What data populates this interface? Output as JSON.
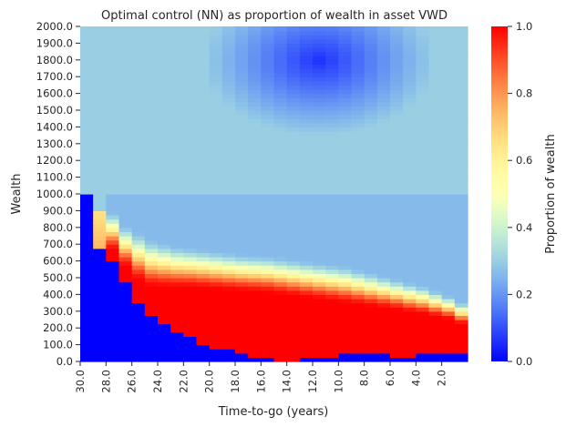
{
  "chart_data": {
    "type": "heatmap",
    "title": "Optimal control (NN) as proportion of wealth in asset VWD",
    "xlabel": "Time-to-go (years)",
    "ylabel": "Wealth",
    "colorbar_label": "Proportion of wealth",
    "x_tick_labels": [
      "30.0",
      "28.0",
      "26.0",
      "24.0",
      "22.0",
      "20.0",
      "18.0",
      "16.0",
      "14.0",
      "12.0",
      "10.0",
      "8.0",
      "6.0",
      "4.0",
      "2.0"
    ],
    "y_tick_labels": [
      "0.0",
      "100.0",
      "200.0",
      "300.0",
      "400.0",
      "500.0",
      "600.0",
      "700.0",
      "800.0",
      "900.0",
      "1000.0",
      "1100.0",
      "1200.0",
      "1300.0",
      "1400.0",
      "1500.0",
      "1600.0",
      "1700.0",
      "1800.0",
      "1900.0",
      "2000.0"
    ],
    "colorbar_tick_labels": [
      "0.0",
      "0.2",
      "0.4",
      "0.6",
      "0.8",
      "1.0"
    ],
    "x_range": [
      30,
      0
    ],
    "y_range": [
      0,
      2000
    ],
    "value_range": [
      0,
      1
    ],
    "colormap": "rainbow",
    "x": [
      30,
      29,
      28,
      27,
      26,
      25,
      24,
      23,
      22,
      21,
      20,
      19,
      18,
      17,
      16,
      15,
      14,
      13,
      12,
      11,
      10,
      9,
      8,
      7,
      6,
      5,
      4,
      3,
      2,
      1
    ],
    "regions": {
      "zero_boundary_wealth": [
        1000,
        670,
        600,
        470,
        360,
        285,
        225,
        175,
        140,
        110,
        85,
        65,
        45,
        25,
        15,
        12,
        12,
        20,
        28,
        35,
        42,
        42,
        40,
        38,
        36,
        36,
        38,
        40,
        40,
        42
      ],
      "full_allocation_top_wealth": [
        0,
        0,
        660,
        560,
        480,
        440,
        435,
        435,
        435,
        430,
        425,
        420,
        415,
        410,
        405,
        395,
        385,
        375,
        365,
        355,
        345,
        335,
        325,
        315,
        305,
        290,
        280,
        265,
        250,
        220
      ],
      "transition_top_wealth": [
        0,
        0,
        900,
        820,
        780,
        740,
        720,
        700,
        690,
        680,
        670,
        660,
        650,
        645,
        640,
        630,
        620,
        610,
        600,
        590,
        580,
        560,
        540,
        520,
        500,
        480,
        460,
        430,
        400,
        360
      ],
      "high_wealth_value": 0.3,
      "mid_wealth_value": 0.26,
      "low_value_high_wealth_center": [
        1800,
        12
      ],
      "low_value_high_wealth_min": 0.06
    }
  }
}
